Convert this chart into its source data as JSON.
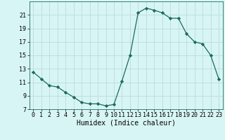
{
  "x": [
    0,
    1,
    2,
    3,
    4,
    5,
    6,
    7,
    8,
    9,
    10,
    11,
    12,
    13,
    14,
    15,
    16,
    17,
    18,
    19,
    20,
    21,
    22,
    23
  ],
  "y": [
    12.5,
    11.5,
    10.5,
    10.3,
    9.5,
    8.8,
    8.0,
    7.8,
    7.8,
    7.5,
    7.7,
    11.2,
    15.0,
    21.3,
    22.0,
    21.7,
    21.3,
    20.5,
    20.5,
    18.2,
    17.0,
    16.7,
    15.0,
    11.5
  ],
  "line_color": "#1a6b5a",
  "marker": "D",
  "markersize": 2.2,
  "bg_color": "#d8f5f5",
  "grid_color": "#c0dede",
  "xlabel": "Humidex (Indice chaleur)",
  "xlabel_fontsize": 7,
  "tick_fontsize": 6,
  "xlim": [
    -0.5,
    23.5
  ],
  "ylim": [
    7,
    23
  ],
  "yticks": [
    7,
    9,
    11,
    13,
    15,
    17,
    19,
    21
  ],
  "xticks": [
    0,
    1,
    2,
    3,
    4,
    5,
    6,
    7,
    8,
    9,
    10,
    11,
    12,
    13,
    14,
    15,
    16,
    17,
    18,
    19,
    20,
    21,
    22,
    23
  ]
}
